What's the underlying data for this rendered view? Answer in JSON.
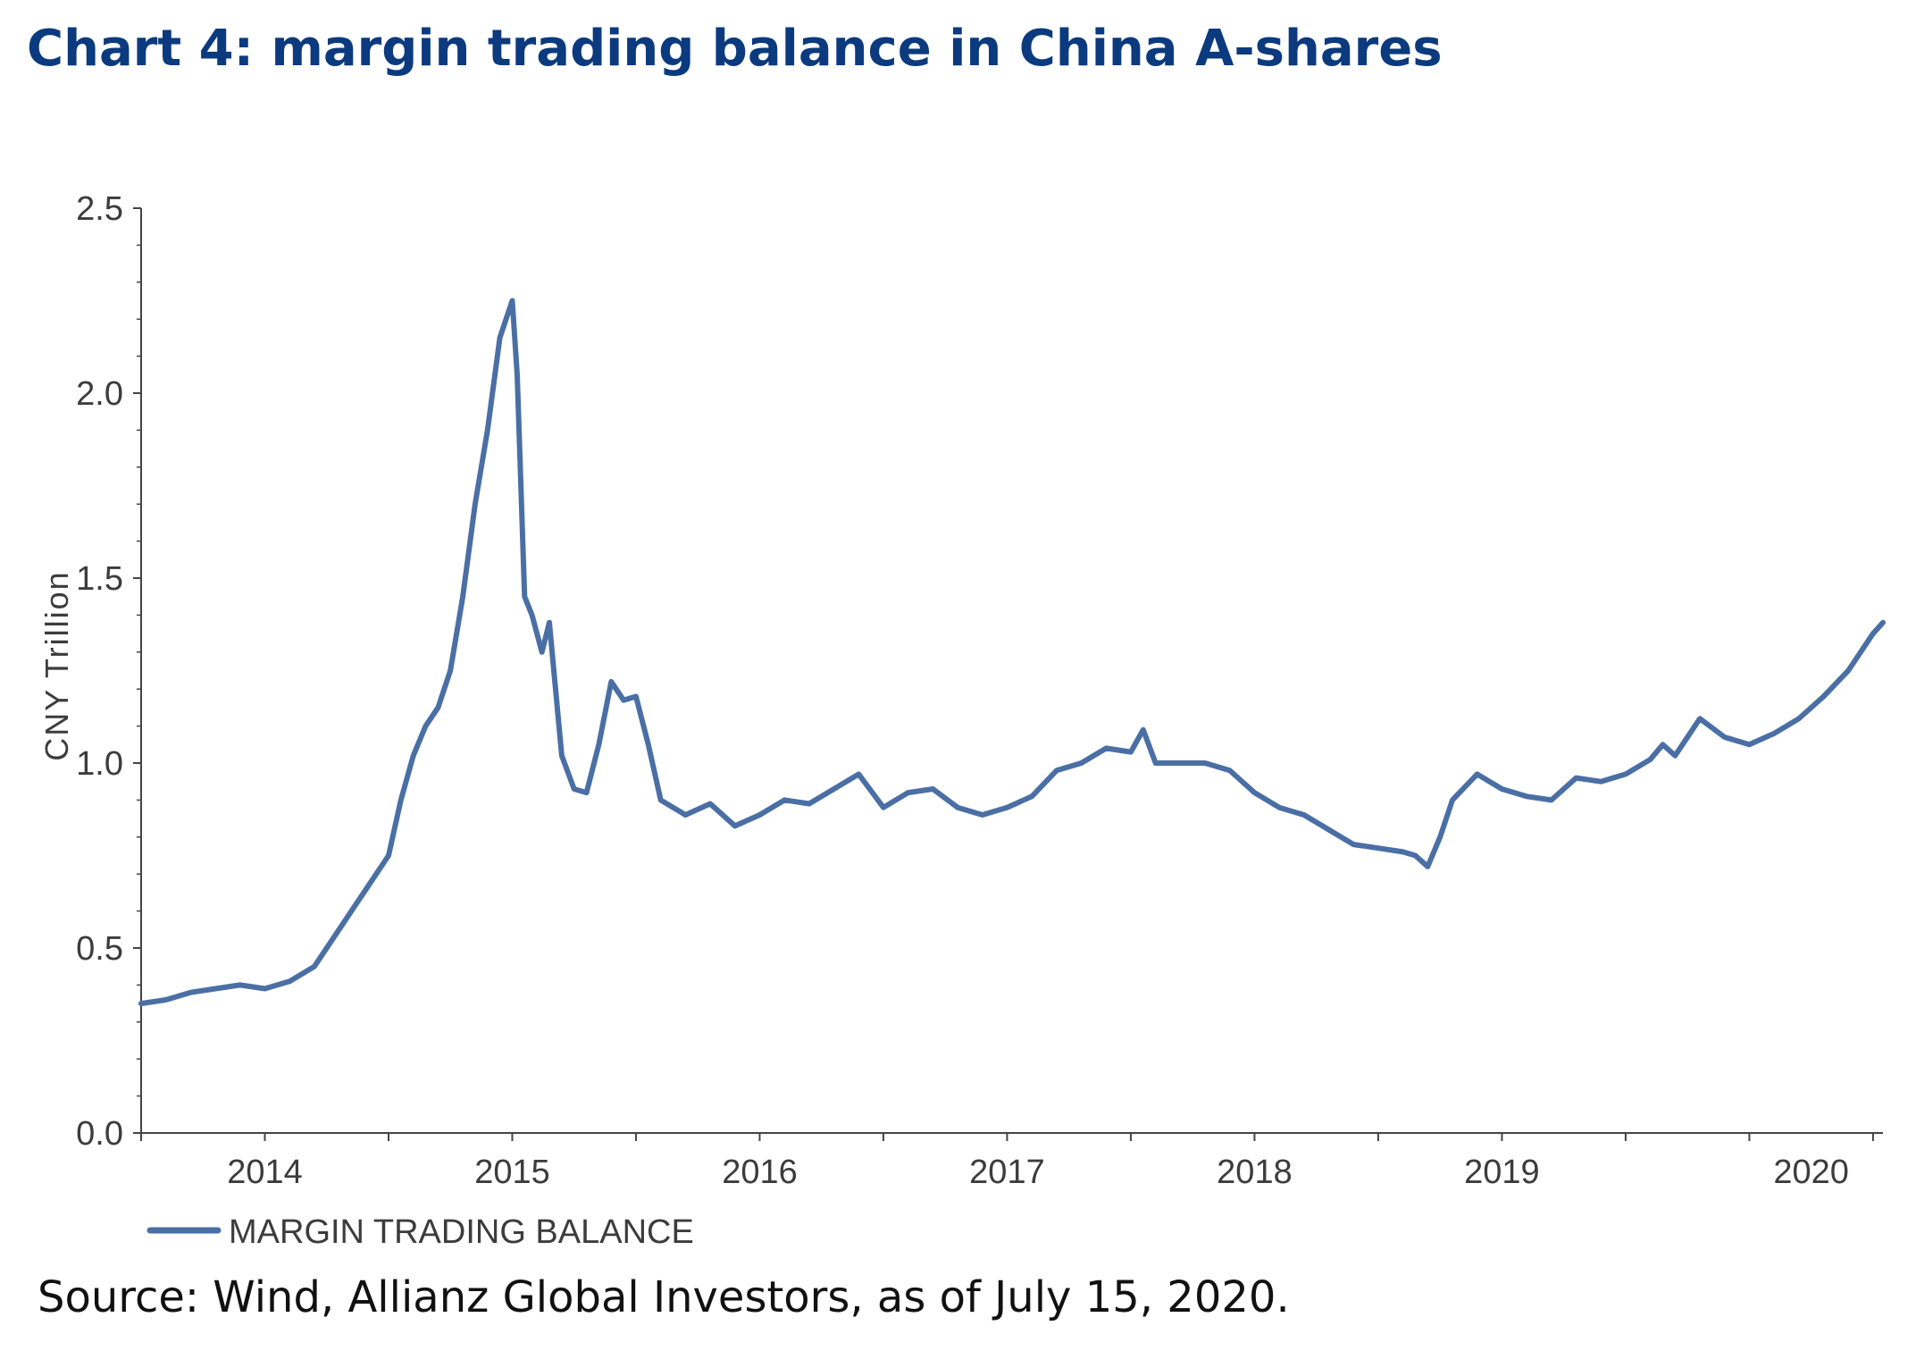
{
  "title": "Chart 4: margin trading balance in China A-shares",
  "source": "Source: Wind, Allianz Global Investors, as of July 15, 2020.",
  "colors": {
    "title": "#0b3a7e",
    "series": "#4a6fa5",
    "axis": "#444444"
  },
  "chart_data": {
    "type": "line",
    "title": "Chart 4: margin trading balance in China A-shares",
    "xlabel": "",
    "ylabel": "CNY Trillion",
    "ylim": [
      0,
      2.5
    ],
    "xlim": [
      2013.5,
      2020.54
    ],
    "yticks": [
      "0.0",
      "0.5",
      "1.0",
      "1.5",
      "2.0",
      "2.5"
    ],
    "xticks": [
      "2014",
      "2015",
      "2016",
      "2017",
      "2018",
      "2019",
      "2020"
    ],
    "grid": false,
    "legend": "bottom-left",
    "series": [
      {
        "name": "MARGIN TRADING BALANCE",
        "x": [
          2013.5,
          2013.6,
          2013.7,
          2013.8,
          2013.9,
          2014.0,
          2014.1,
          2014.2,
          2014.3,
          2014.4,
          2014.5,
          2014.55,
          2014.6,
          2014.65,
          2014.7,
          2014.75,
          2014.8,
          2014.85,
          2014.9,
          2014.95,
          2015.0,
          2015.02,
          2015.05,
          2015.08,
          2015.12,
          2015.15,
          2015.2,
          2015.25,
          2015.3,
          2015.35,
          2015.4,
          2015.45,
          2015.5,
          2015.55,
          2015.6,
          2015.7,
          2015.8,
          2015.9,
          2016.0,
          2016.1,
          2016.2,
          2016.3,
          2016.4,
          2016.5,
          2016.6,
          2016.7,
          2016.8,
          2016.9,
          2017.0,
          2017.1,
          2017.2,
          2017.3,
          2017.4,
          2017.5,
          2017.55,
          2017.6,
          2017.7,
          2017.8,
          2017.9,
          2018.0,
          2018.1,
          2018.2,
          2018.3,
          2018.4,
          2018.5,
          2018.6,
          2018.65,
          2018.7,
          2018.75,
          2018.8,
          2018.9,
          2019.0,
          2019.1,
          2019.2,
          2019.3,
          2019.4,
          2019.5,
          2019.6,
          2019.65,
          2019.7,
          2019.8,
          2019.9,
          2020.0,
          2020.1,
          2020.2,
          2020.3,
          2020.4,
          2020.5,
          2020.54
        ],
        "values": [
          0.35,
          0.36,
          0.38,
          0.39,
          0.4,
          0.39,
          0.41,
          0.45,
          0.55,
          0.65,
          0.75,
          0.9,
          1.02,
          1.1,
          1.15,
          1.25,
          1.45,
          1.7,
          1.9,
          2.15,
          2.25,
          2.05,
          1.45,
          1.4,
          1.3,
          1.38,
          1.02,
          0.93,
          0.92,
          1.05,
          1.22,
          1.17,
          1.18,
          1.05,
          0.9,
          0.86,
          0.89,
          0.83,
          0.86,
          0.9,
          0.89,
          0.93,
          0.97,
          0.88,
          0.92,
          0.93,
          0.88,
          0.86,
          0.88,
          0.91,
          0.98,
          1.0,
          1.04,
          1.03,
          1.09,
          1.0,
          1.0,
          1.0,
          0.98,
          0.92,
          0.88,
          0.86,
          0.82,
          0.78,
          0.77,
          0.76,
          0.75,
          0.72,
          0.8,
          0.9,
          0.97,
          0.93,
          0.91,
          0.9,
          0.96,
          0.95,
          0.97,
          1.01,
          1.05,
          1.02,
          1.12,
          1.07,
          1.05,
          1.08,
          1.12,
          1.18,
          1.25,
          1.35,
          1.38
        ]
      }
    ]
  }
}
